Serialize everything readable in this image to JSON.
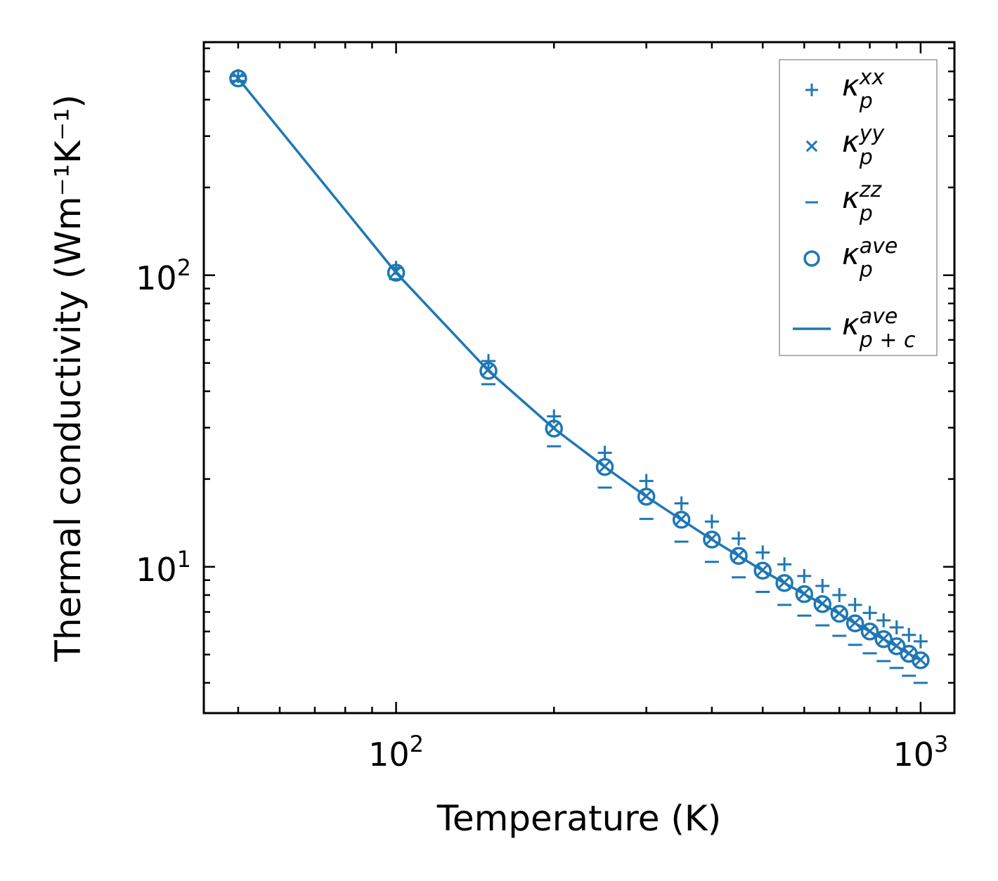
{
  "chart_data": {
    "type": "scatter",
    "title": "",
    "xlabel": "Temperature (K)",
    "ylabel": "Thermal conductivity (Wm⁻¹K⁻¹)",
    "xscale": "log",
    "yscale": "log",
    "xlim": [
      43,
      1160
    ],
    "ylim": [
      3.15,
      630
    ],
    "xticks": [
      {
        "value": 100,
        "base": "10",
        "exp": "2"
      },
      {
        "value": 1000,
        "base": "10",
        "exp": "3"
      }
    ],
    "yticks": [
      {
        "value": 10,
        "base": "10",
        "exp": "1"
      },
      {
        "value": 100,
        "base": "10",
        "exp": "2"
      }
    ],
    "legend_position": "top-right",
    "color": "#1f77b4",
    "x": [
      50,
      100,
      150,
      200,
      250,
      300,
      350,
      400,
      450,
      500,
      550,
      600,
      650,
      700,
      750,
      800,
      850,
      900,
      950,
      1000
    ],
    "series": [
      {
        "name": "κ_p^xx",
        "sym": "κ",
        "sub": "p",
        "sup": "xx",
        "marker": "plus",
        "values": [
          482,
          106,
          50.8,
          32.8,
          24.6,
          19.7,
          16.5,
          14.3,
          12.5,
          11.2,
          10.2,
          9.3,
          8.6,
          8.0,
          7.4,
          6.95,
          6.55,
          6.2,
          5.84,
          5.55
        ]
      },
      {
        "name": "κ_p^yy",
        "sym": "κ",
        "sub": "p",
        "sup": "yy",
        "marker": "x",
        "values": [
          474,
          103,
          47.5,
          30.0,
          22.1,
          17.5,
          14.6,
          12.5,
          10.95,
          9.75,
          8.85,
          8.1,
          7.48,
          6.93,
          6.43,
          6.02,
          5.67,
          5.36,
          5.05,
          4.8
        ]
      },
      {
        "name": "κ_p^zz",
        "sym": "κ",
        "sub": "p",
        "sup": "zz",
        "marker": "hline",
        "values": [
          464,
          97,
          42.3,
          25.9,
          18.7,
          14.6,
          12.2,
          10.4,
          9.2,
          8.2,
          7.4,
          6.8,
          6.3,
          5.8,
          5.4,
          5.05,
          4.75,
          4.5,
          4.23,
          4.0
        ]
      },
      {
        "name": "κ_p^ave",
        "sym": "κ",
        "sub": "p",
        "sup": "ave",
        "marker": "circle",
        "values": [
          473,
          102,
          47,
          29.8,
          22,
          17.4,
          14.5,
          12.4,
          10.9,
          9.7,
          8.8,
          8.06,
          7.45,
          6.9,
          6.4,
          6.0,
          5.65,
          5.34,
          5.03,
          4.78
        ]
      },
      {
        "name": "κ_p+c^ave",
        "sym": "κ",
        "sub": "p + c",
        "sup": "ave",
        "marker": "line",
        "values": [
          473,
          102,
          47,
          29.8,
          22,
          17.4,
          14.5,
          12.4,
          10.9,
          9.7,
          8.8,
          8.06,
          7.45,
          6.9,
          6.4,
          6.0,
          5.65,
          5.34,
          5.03,
          4.78
        ]
      }
    ]
  }
}
